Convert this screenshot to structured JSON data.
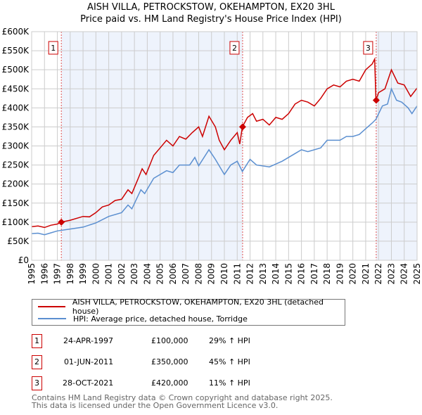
{
  "title": "AISH VILLA, PETROCKSTOW, OKEHAMPTON, EX20 3HL",
  "subtitle": "Price paid vs. HM Land Registry's House Price Index (HPI)",
  "chart_data": {
    "type": "line",
    "xlim": [
      1995,
      2025
    ],
    "ylim": [
      0,
      600000
    ],
    "yticks": [
      0,
      50000,
      100000,
      150000,
      200000,
      250000,
      300000,
      350000,
      400000,
      450000,
      500000,
      550000,
      600000
    ],
    "ytick_labels": [
      "£0",
      "£50K",
      "£100K",
      "£150K",
      "£200K",
      "£250K",
      "£300K",
      "£350K",
      "£400K",
      "£450K",
      "£500K",
      "£550K",
      "£600K"
    ],
    "xtick_labels": [
      "1995",
      "1996",
      "1997",
      "1998",
      "1999",
      "2000",
      "2001",
      "2002",
      "2003",
      "2004",
      "2005",
      "2006",
      "2007",
      "2008",
      "2009",
      "2010",
      "2011",
      "2012",
      "2013",
      "2014",
      "2015",
      "2016",
      "2017",
      "2018",
      "2019",
      "2020",
      "2021",
      "2022",
      "2023",
      "2024",
      "2025"
    ],
    "grid": true,
    "series": [
      {
        "name": "AISH VILLA, PETROCKSTOW, OKEHAMPTON, EX20 3HL (detached house)",
        "color": "#cc0000",
        "x": [
          1995,
          1995.5,
          1996,
          1996.5,
          1997,
          1997.3,
          1998,
          1999,
          1999.5,
          2000,
          2000.5,
          2001,
          2001.5,
          2002,
          2002.5,
          2002.8,
          2003.3,
          2003.6,
          2003.9,
          2004.5,
          2005,
          2005.5,
          2006,
          2006.5,
          2007,
          2007.5,
          2008,
          2008.3,
          2008.8,
          2009.3,
          2009.6,
          2010,
          2010.5,
          2011,
          2011.2,
          2011.4,
          2011.8,
          2012.2,
          2012.5,
          2013,
          2013.5,
          2014,
          2014.5,
          2015,
          2015.5,
          2016,
          2016.5,
          2017,
          2017.5,
          2018,
          2018.5,
          2019,
          2019.5,
          2020,
          2020.5,
          2021,
          2021.5,
          2021.7,
          2021.8,
          2022,
          2022.5,
          2023,
          2023.5,
          2024,
          2024.5,
          2025
        ],
        "y": [
          88000,
          90000,
          86000,
          92000,
          95000,
          100000,
          105000,
          115000,
          114000,
          125000,
          140000,
          145000,
          157000,
          160000,
          185000,
          175000,
          215000,
          240000,
          225000,
          275000,
          295000,
          315000,
          300000,
          325000,
          318000,
          335000,
          350000,
          325000,
          378000,
          350000,
          315000,
          290000,
          315000,
          335000,
          305000,
          350000,
          375000,
          385000,
          365000,
          370000,
          355000,
          375000,
          370000,
          385000,
          410000,
          420000,
          415000,
          405000,
          425000,
          450000,
          460000,
          455000,
          470000,
          475000,
          470000,
          500000,
          515000,
          528000,
          420000,
          440000,
          450000,
          500000,
          465000,
          460000,
          430000,
          452000
        ]
      },
      {
        "name": "HPI: Average price, detached house, Torridge",
        "color": "#5b8fd0",
        "x": [
          1995,
          1995.5,
          1996,
          1996.5,
          1997,
          1998,
          1999,
          2000,
          2001,
          2002,
          2002.5,
          2002.8,
          2003.5,
          2003.8,
          2004.5,
          2005.5,
          2006,
          2006.5,
          2007.3,
          2007.7,
          2008,
          2008.8,
          2009.3,
          2010,
          2010.5,
          2011,
          2011.4,
          2012,
          2012.5,
          2013.5,
          2014.5,
          2015.5,
          2016,
          2016.5,
          2017.5,
          2018,
          2019,
          2019.5,
          2020,
          2020.5,
          2021,
          2021.5,
          2021.8,
          2022.3,
          2022.7,
          2023,
          2023.4,
          2023.8,
          2024.3,
          2024.6,
          2025
        ],
        "y": [
          70000,
          71000,
          67000,
          72000,
          77000,
          82000,
          87000,
          98000,
          115000,
          125000,
          145000,
          135000,
          185000,
          175000,
          215000,
          235000,
          230000,
          250000,
          250000,
          270000,
          248000,
          290000,
          265000,
          225000,
          250000,
          260000,
          233000,
          265000,
          250000,
          245000,
          260000,
          280000,
          290000,
          285000,
          295000,
          315000,
          315000,
          325000,
          325000,
          330000,
          345000,
          360000,
          370000,
          405000,
          410000,
          450000,
          420000,
          415000,
          400000,
          385000,
          405000
        ]
      }
    ],
    "sales": [
      {
        "label": "1",
        "x": 1997.31,
        "y": 100000
      },
      {
        "label": "2",
        "x": 2011.42,
        "y": 350000
      },
      {
        "label": "3",
        "x": 2021.82,
        "y": 420000
      }
    ]
  },
  "legend": {
    "property": "AISH VILLA, PETROCKSTOW, OKEHAMPTON, EX20 3HL (detached house)",
    "hpi": "HPI: Average price, detached house, Torridge"
  },
  "transactions": [
    {
      "num": "1",
      "date": "24-APR-1997",
      "price": "£100,000",
      "hpi": "29% ↑ HPI"
    },
    {
      "num": "2",
      "date": "01-JUN-2011",
      "price": "£350,000",
      "hpi": "45% ↑ HPI"
    },
    {
      "num": "3",
      "date": "28-OCT-2021",
      "price": "£420,000",
      "hpi": "11% ↑ HPI"
    }
  ],
  "footer": {
    "line1": "Contains HM Land Registry data © Crown copyright and database right 2025.",
    "line2": "This data is licensed under the Open Government Licence v3.0."
  }
}
